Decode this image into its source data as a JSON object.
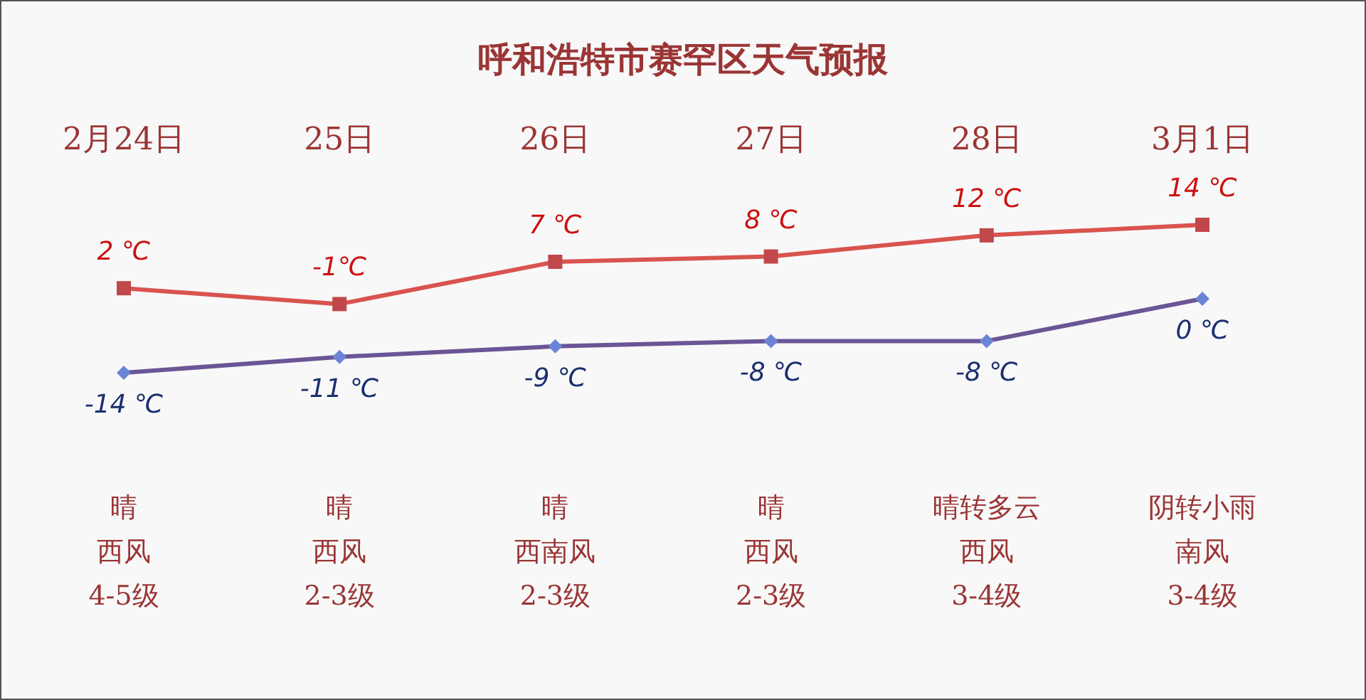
{
  "chart_data": {
    "type": "line",
    "title": "呼和浩特市赛罕区天气预报",
    "categories": [
      "2月24日",
      "25日",
      "26日",
      "27日",
      "28日",
      "3月1日"
    ],
    "series": [
      {
        "color": "#d9534f",
        "marker": "square",
        "values": [
          2,
          -1,
          7,
          8,
          12,
          14
        ],
        "value_labels": [
          "2 ℃",
          "-1℃",
          "7 ℃",
          "8 ℃",
          "12 ℃",
          "14 ℃"
        ]
      },
      {
        "color": "#6a5595",
        "marker": "diamond",
        "values": [
          -14,
          -11,
          -9,
          -8,
          -8,
          0
        ],
        "value_labels": [
          "-14 ℃",
          "-11 ℃",
          "-9 ℃",
          "-8 ℃",
          "-8 ℃",
          "0 ℃"
        ]
      }
    ],
    "annotations": [
      "晴",
      "西风",
      "4-5级",
      "晴",
      "西风",
      "2-3级",
      "晴",
      "西南风",
      "2-3级",
      "晴",
      "西风",
      "2-3级",
      "晴转多云",
      "西风",
      "3-4级",
      "阴转小雨",
      "南风",
      "3-4级"
    ]
  }
}
